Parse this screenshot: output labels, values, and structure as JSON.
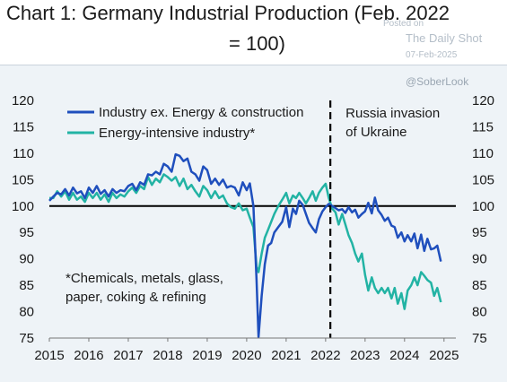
{
  "header": {
    "title_line1": "Chart 1: Germany Industrial Production (Feb. 2022",
    "title_line2": "= 100)"
  },
  "watermark": {
    "posted_on": "Posted on",
    "site": "The Daily Shot",
    "date": "07-Feb-2025",
    "handle": "@SoberLook"
  },
  "chart_data": {
    "type": "line",
    "title": "Chart 1: Germany Industrial Production (Feb. 2022 = 100)",
    "x_ticks": [
      "2015",
      "2016",
      "2017",
      "2018",
      "2019",
      "2020",
      "2021",
      "2022",
      "2023",
      "2024",
      "2025"
    ],
    "y_ticks": [
      "75",
      "80",
      "85",
      "90",
      "95",
      "100",
      "105",
      "110",
      "115",
      "120"
    ],
    "xlim": [
      2015,
      2025.3
    ],
    "ylim": [
      75,
      120
    ],
    "reference_line_y": 100,
    "event_line_x": 2022.12,
    "event_label": [
      "Russia invasion",
      "of Ukraine"
    ],
    "note": [
      "*Chemicals, metals, glass,",
      "paper, coking & refining"
    ],
    "legend_position": "top-left",
    "colors": {
      "industry": "#1f4fbd",
      "energy_intensive": "#22b3a4",
      "reference": "#000000"
    },
    "series": [
      {
        "name": "Industry ex. Energy & construction",
        "color_key": "industry",
        "points": [
          [
            2015.0,
            101
          ],
          [
            2015.1,
            101.8
          ],
          [
            2015.2,
            102.5
          ],
          [
            2015.3,
            102.2
          ],
          [
            2015.4,
            103.2
          ],
          [
            2015.5,
            102
          ],
          [
            2015.6,
            103.5
          ],
          [
            2015.7,
            102.4
          ],
          [
            2015.8,
            102.8
          ],
          [
            2015.9,
            101.5
          ],
          [
            2016.0,
            103.5
          ],
          [
            2016.1,
            102.5
          ],
          [
            2016.2,
            103.8
          ],
          [
            2016.3,
            102.3
          ],
          [
            2016.4,
            103
          ],
          [
            2016.5,
            101.8
          ],
          [
            2016.6,
            103.2
          ],
          [
            2016.7,
            102.5
          ],
          [
            2016.8,
            103
          ],
          [
            2016.9,
            102.8
          ],
          [
            2017.0,
            103.8
          ],
          [
            2017.1,
            104.2
          ],
          [
            2017.2,
            103
          ],
          [
            2017.3,
            104.5
          ],
          [
            2017.4,
            104
          ],
          [
            2017.5,
            106
          ],
          [
            2017.6,
            105.8
          ],
          [
            2017.7,
            106.5
          ],
          [
            2017.8,
            106
          ],
          [
            2017.9,
            108
          ],
          [
            2018.0,
            107.5
          ],
          [
            2018.1,
            106.5
          ],
          [
            2018.2,
            109.8
          ],
          [
            2018.3,
            109.5
          ],
          [
            2018.4,
            108.5
          ],
          [
            2018.5,
            109
          ],
          [
            2018.6,
            106.5
          ],
          [
            2018.7,
            106
          ],
          [
            2018.8,
            104.8
          ],
          [
            2018.9,
            107.5
          ],
          [
            2019.0,
            106.8
          ],
          [
            2019.1,
            104.2
          ],
          [
            2019.2,
            105.2
          ],
          [
            2019.3,
            104
          ],
          [
            2019.4,
            105
          ],
          [
            2019.5,
            103.5
          ],
          [
            2019.6,
            103.8
          ],
          [
            2019.7,
            103.5
          ],
          [
            2019.8,
            102
          ],
          [
            2019.9,
            104.5
          ],
          [
            2020.0,
            103
          ],
          [
            2020.08,
            104.3
          ],
          [
            2020.17,
            100
          ],
          [
            2020.25,
            86
          ],
          [
            2020.3,
            75.2
          ],
          [
            2020.38,
            83
          ],
          [
            2020.46,
            89
          ],
          [
            2020.54,
            92.5
          ],
          [
            2020.62,
            93
          ],
          [
            2020.7,
            95
          ],
          [
            2020.8,
            96
          ],
          [
            2020.9,
            97
          ],
          [
            2021.0,
            99.8
          ],
          [
            2021.08,
            96
          ],
          [
            2021.17,
            99.5
          ],
          [
            2021.25,
            98.5
          ],
          [
            2021.33,
            101
          ],
          [
            2021.42,
            100.2
          ],
          [
            2021.5,
            98.5
          ],
          [
            2021.58,
            96.8
          ],
          [
            2021.67,
            95.8
          ],
          [
            2021.75,
            95
          ],
          [
            2021.83,
            97.5
          ],
          [
            2021.92,
            99
          ],
          [
            2022.0,
            99.8
          ],
          [
            2022.08,
            100.4
          ],
          [
            2022.17,
            100
          ],
          [
            2022.25,
            99.6
          ],
          [
            2022.33,
            99.2
          ],
          [
            2022.42,
            99.4
          ],
          [
            2022.5,
            98.7
          ],
          [
            2022.58,
            99.8
          ],
          [
            2022.67,
            98.8
          ],
          [
            2022.75,
            99.3
          ],
          [
            2022.83,
            97.8
          ],
          [
            2022.92,
            98.5
          ],
          [
            2023.0,
            99
          ],
          [
            2023.08,
            100.6
          ],
          [
            2023.17,
            98.6
          ],
          [
            2023.25,
            101.6
          ],
          [
            2023.33,
            99.2
          ],
          [
            2023.42,
            98.3
          ],
          [
            2023.5,
            97.2
          ],
          [
            2023.58,
            97.8
          ],
          [
            2023.67,
            96.3
          ],
          [
            2023.75,
            96
          ],
          [
            2023.83,
            94
          ],
          [
            2023.92,
            95
          ],
          [
            2024.0,
            93.3
          ],
          [
            2024.08,
            94.5
          ],
          [
            2024.17,
            93.3
          ],
          [
            2024.25,
            94.8
          ],
          [
            2024.33,
            92
          ],
          [
            2024.42,
            94.6
          ],
          [
            2024.5,
            91.5
          ],
          [
            2024.58,
            93.8
          ],
          [
            2024.67,
            91.8
          ],
          [
            2024.75,
            92
          ],
          [
            2024.83,
            92.5
          ],
          [
            2024.92,
            89.5
          ]
        ]
      },
      {
        "name": "Energy-intensive industry*",
        "color_key": "energy_intensive",
        "points": [
          [
            2015.0,
            101.5
          ],
          [
            2015.1,
            101.5
          ],
          [
            2015.2,
            102.8
          ],
          [
            2015.3,
            101.8
          ],
          [
            2015.4,
            102.8
          ],
          [
            2015.5,
            101.2
          ],
          [
            2015.6,
            102.5
          ],
          [
            2015.7,
            101.2
          ],
          [
            2015.8,
            101.8
          ],
          [
            2015.9,
            100.8
          ],
          [
            2016.0,
            102.5
          ],
          [
            2016.1,
            101.5
          ],
          [
            2016.2,
            102.5
          ],
          [
            2016.3,
            101.2
          ],
          [
            2016.4,
            102.2
          ],
          [
            2016.5,
            100.8
          ],
          [
            2016.6,
            102.5
          ],
          [
            2016.7,
            101.5
          ],
          [
            2016.8,
            102.2
          ],
          [
            2016.9,
            101.8
          ],
          [
            2017.0,
            102.8
          ],
          [
            2017.1,
            103.5
          ],
          [
            2017.2,
            102.5
          ],
          [
            2017.3,
            103.8
          ],
          [
            2017.4,
            103.2
          ],
          [
            2017.5,
            105.5
          ],
          [
            2017.6,
            104
          ],
          [
            2017.7,
            105.2
          ],
          [
            2017.8,
            104.5
          ],
          [
            2017.9,
            106
          ],
          [
            2018.0,
            105.5
          ],
          [
            2018.1,
            104.8
          ],
          [
            2018.2,
            105.5
          ],
          [
            2018.3,
            103.8
          ],
          [
            2018.4,
            105.2
          ],
          [
            2018.5,
            103.2
          ],
          [
            2018.6,
            104
          ],
          [
            2018.7,
            102.8
          ],
          [
            2018.8,
            101.8
          ],
          [
            2018.9,
            103.8
          ],
          [
            2019.0,
            103
          ],
          [
            2019.1,
            101.5
          ],
          [
            2019.2,
            102.8
          ],
          [
            2019.3,
            101.5
          ],
          [
            2019.4,
            102
          ],
          [
            2019.5,
            100.5
          ],
          [
            2019.6,
            99.8
          ],
          [
            2019.7,
            99.5
          ],
          [
            2019.8,
            100.5
          ],
          [
            2019.9,
            99.2
          ],
          [
            2020.0,
            99.5
          ],
          [
            2020.08,
            97.8
          ],
          [
            2020.17,
            96
          ],
          [
            2020.25,
            88.5
          ],
          [
            2020.3,
            87.5
          ],
          [
            2020.38,
            91
          ],
          [
            2020.46,
            94
          ],
          [
            2020.54,
            95.5
          ],
          [
            2020.62,
            97
          ],
          [
            2020.7,
            98.5
          ],
          [
            2020.8,
            100
          ],
          [
            2020.9,
            101.2
          ],
          [
            2021.0,
            102.5
          ],
          [
            2021.08,
            100.5
          ],
          [
            2021.17,
            102
          ],
          [
            2021.25,
            101.5
          ],
          [
            2021.33,
            102.5
          ],
          [
            2021.42,
            101.5
          ],
          [
            2021.5,
            100.5
          ],
          [
            2021.58,
            101.5
          ],
          [
            2021.67,
            102.8
          ],
          [
            2021.75,
            101
          ],
          [
            2021.83,
            102.5
          ],
          [
            2021.92,
            103.5
          ],
          [
            2022.0,
            104.2
          ],
          [
            2022.08,
            101.5
          ],
          [
            2022.17,
            99.5
          ],
          [
            2022.25,
            98.8
          ],
          [
            2022.33,
            96.5
          ],
          [
            2022.42,
            98.5
          ],
          [
            2022.5,
            96.5
          ],
          [
            2022.58,
            94.5
          ],
          [
            2022.67,
            93
          ],
          [
            2022.75,
            91
          ],
          [
            2022.83,
            89.5
          ],
          [
            2022.92,
            91
          ],
          [
            2023.0,
            87
          ],
          [
            2023.08,
            84
          ],
          [
            2023.17,
            86.5
          ],
          [
            2023.25,
            84.5
          ],
          [
            2023.33,
            83.5
          ],
          [
            2023.42,
            84.5
          ],
          [
            2023.5,
            83.5
          ],
          [
            2023.58,
            84.5
          ],
          [
            2023.67,
            82.5
          ],
          [
            2023.75,
            84.5
          ],
          [
            2023.83,
            81.5
          ],
          [
            2023.92,
            83.5
          ],
          [
            2024.0,
            80.5
          ],
          [
            2024.08,
            84
          ],
          [
            2024.17,
            85
          ],
          [
            2024.25,
            86.5
          ],
          [
            2024.33,
            85
          ],
          [
            2024.42,
            87.5
          ],
          [
            2024.5,
            86.8
          ],
          [
            2024.58,
            86
          ],
          [
            2024.67,
            85.5
          ],
          [
            2024.75,
            83
          ],
          [
            2024.83,
            84.5
          ],
          [
            2024.92,
            81.8
          ]
        ]
      }
    ]
  }
}
